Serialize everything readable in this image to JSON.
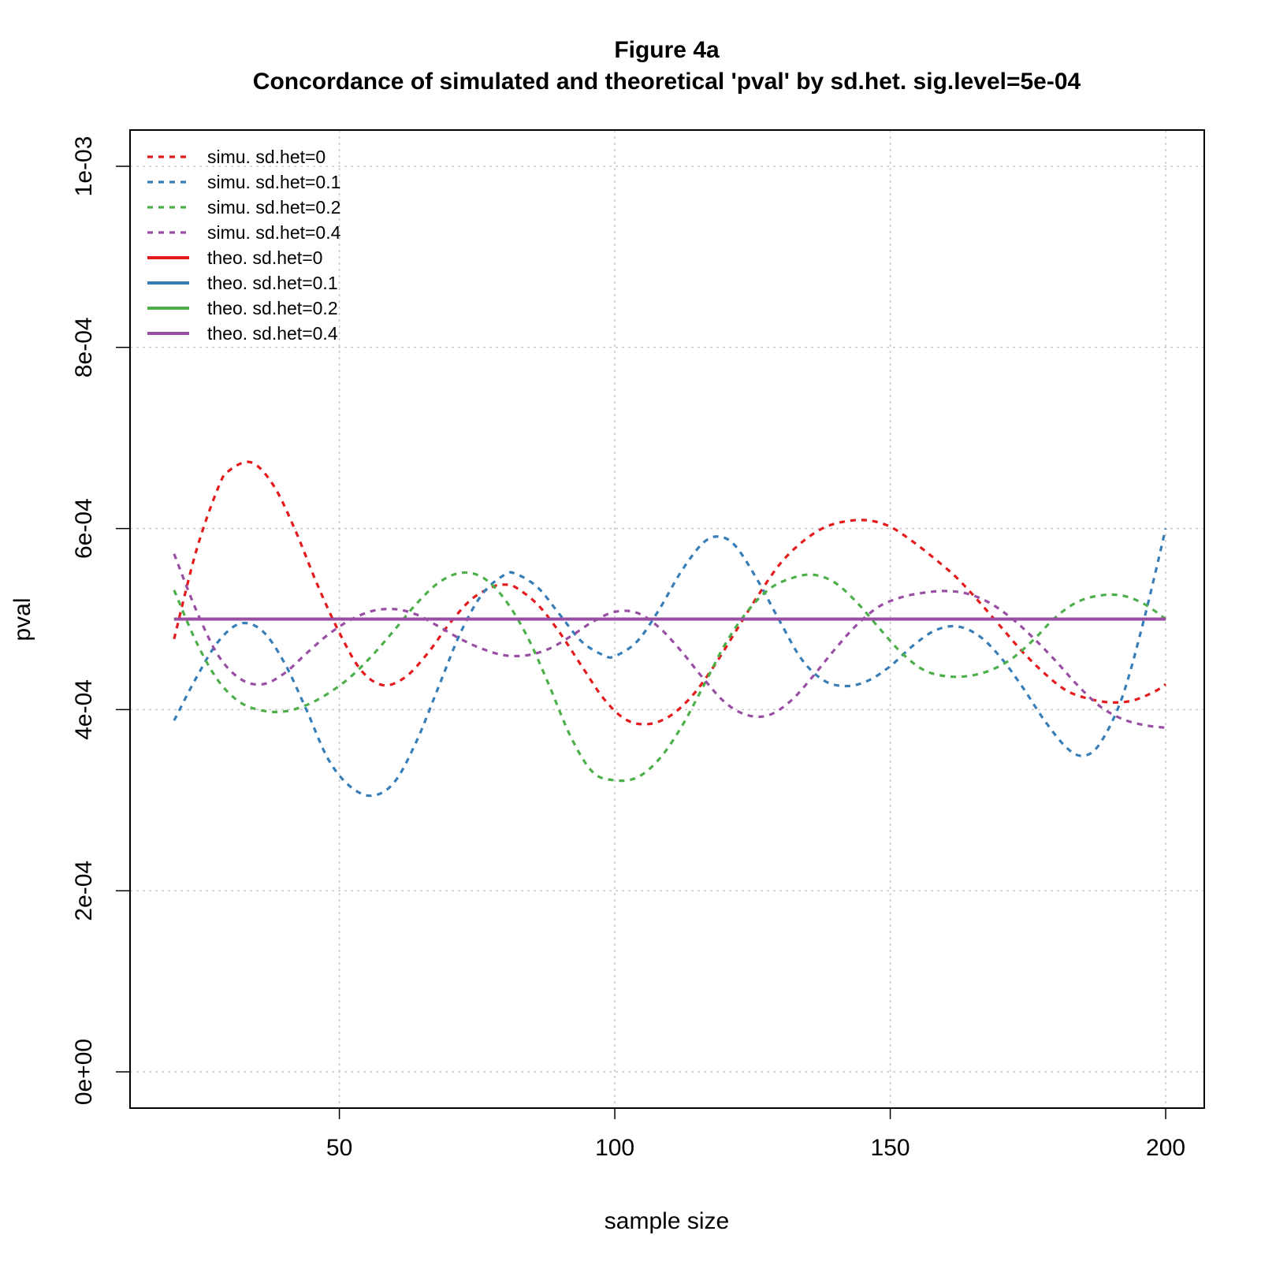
{
  "chart_data": {
    "type": "line",
    "title": "Figure 4a",
    "subtitle": "Concordance of simulated and theoretical 'pval' by sd.het. sig.level=5e-04",
    "xlabel": "sample size",
    "ylabel": "pval",
    "xlim": [
      12,
      207
    ],
    "ylim": [
      -4e-05,
      0.00104
    ],
    "x_ticks": [
      50,
      100,
      150,
      200
    ],
    "x_tick_labels": [
      "50",
      "100",
      "150",
      "200"
    ],
    "y_ticks": [
      0,
      0.0002,
      0.0004,
      0.0006,
      0.0008,
      0.001
    ],
    "y_tick_labels": [
      "0e+00",
      "2e-04",
      "4e-04",
      "6e-04",
      "8e-04",
      "1e-03"
    ],
    "grid": true,
    "legend_position": "top-left",
    "series": [
      {
        "name": "simu. sd.het=0",
        "color": "#e41a1c",
        "style": "dashed",
        "x": [
          20,
          24,
          28,
          30,
          34,
          38,
          42,
          46,
          50,
          54,
          58,
          62,
          66,
          70,
          74,
          78,
          80,
          82,
          86,
          90,
          94,
          98,
          102,
          106,
          110,
          114,
          118,
          122,
          126,
          130,
          134,
          138,
          142,
          146,
          150,
          154,
          158,
          162,
          166,
          170,
          174,
          178,
          182,
          186,
          190,
          194,
          198,
          200
        ],
        "y": [
          0.000478,
          0.000575,
          0.000645,
          0.000664,
          0.000673,
          0.000648,
          0.000598,
          0.000538,
          0.000485,
          0.000443,
          0.000427,
          0.000436,
          0.000462,
          0.000495,
          0.000522,
          0.000536,
          0.000538,
          0.000535,
          0.000516,
          0.000485,
          0.000448,
          0.000412,
          0.000389,
          0.000384,
          0.000393,
          0.000415,
          0.000448,
          0.000487,
          0.000526,
          0.000561,
          0.000585,
          0.000601,
          0.000608,
          0.000609,
          0.000602,
          0.000586,
          0.000567,
          0.000546,
          0.00052,
          0.000492,
          0.000464,
          0.00044,
          0.000421,
          0.000412,
          0.000408,
          0.00041,
          0.00042,
          0.000428
        ]
      },
      {
        "name": "simu. sd.het=0.1",
        "color": "#377eb8",
        "style": "dashed",
        "x": [
          20,
          24,
          28,
          32,
          36,
          40,
          44,
          48,
          52,
          56,
          60,
          64,
          68,
          72,
          76,
          80,
          82,
          86,
          90,
          94,
          98,
          100,
          104,
          108,
          112,
          116,
          119,
          122,
          126,
          130,
          134,
          138,
          142,
          146,
          150,
          154,
          158,
          162,
          166,
          170,
          174,
          178,
          182,
          185,
          188,
          192,
          196,
          200
        ],
        "y": [
          0.000388,
          0.000435,
          0.000475,
          0.000495,
          0.000487,
          0.000452,
          0.0004,
          0.000345,
          0.000315,
          0.000305,
          0.00032,
          0.000365,
          0.000425,
          0.000485,
          0.000528,
          0.000549,
          0.00055,
          0.000535,
          0.000505,
          0.000475,
          0.00046,
          0.000459,
          0.000475,
          0.00051,
          0.000552,
          0.000584,
          0.000591,
          0.00058,
          0.000542,
          0.000497,
          0.000455,
          0.000432,
          0.000426,
          0.000432,
          0.000448,
          0.00047,
          0.000487,
          0.000492,
          0.000482,
          0.000458,
          0.000425,
          0.000388,
          0.000358,
          0.000349,
          0.000362,
          0.000412,
          0.000498,
          0.0006
        ]
      },
      {
        "name": "simu. sd.het=0.2",
        "color": "#4daf4a",
        "style": "dashed",
        "x": [
          20,
          24,
          28,
          32,
          36,
          40,
          44,
          48,
          52,
          56,
          60,
          64,
          68,
          72,
          76,
          80,
          84,
          88,
          92,
          96,
          100,
          104,
          108,
          112,
          116,
          120,
          124,
          128,
          132,
          136,
          140,
          144,
          148,
          152,
          156,
          160,
          164,
          168,
          172,
          176,
          180,
          184,
          188,
          192,
          196,
          200
        ],
        "y": [
          0.000532,
          0.000475,
          0.000432,
          0.000408,
          0.000399,
          0.000398,
          0.000405,
          0.000418,
          0.000436,
          0.00046,
          0.000488,
          0.000517,
          0.00054,
          0.000551,
          0.000546,
          0.000522,
          0.000482,
          0.000428,
          0.00037,
          0.000331,
          0.000322,
          0.000325,
          0.000345,
          0.00038,
          0.000425,
          0.000472,
          0.000508,
          0.000533,
          0.000545,
          0.000549,
          0.00054,
          0.000518,
          0.00049,
          0.000463,
          0.000444,
          0.000437,
          0.000437,
          0.000443,
          0.000456,
          0.000477,
          0.000502,
          0.000519,
          0.000526,
          0.000526,
          0.000517,
          0.0005
        ]
      },
      {
        "name": "simu. sd.het=0.4",
        "color": "#984ea3",
        "style": "dashed",
        "x": [
          20,
          24,
          28,
          32,
          36,
          40,
          44,
          48,
          52,
          56,
          60,
          64,
          68,
          72,
          76,
          80,
          84,
          88,
          92,
          96,
          100,
          104,
          108,
          112,
          116,
          120,
          124,
          128,
          132,
          136,
          140,
          144,
          148,
          152,
          156,
          160,
          164,
          168,
          172,
          176,
          180,
          184,
          188,
          192,
          196,
          200
        ],
        "y": [
          0.000572,
          0.00051,
          0.00046,
          0.000434,
          0.000428,
          0.00044,
          0.000462,
          0.000483,
          0.000499,
          0.000509,
          0.000511,
          0.000505,
          0.000492,
          0.000478,
          0.000467,
          0.00046,
          0.00046,
          0.000467,
          0.000481,
          0.000497,
          0.000508,
          0.000507,
          0.000491,
          0.000465,
          0.000435,
          0.000408,
          0.000394,
          0.000394,
          0.00041,
          0.000437,
          0.000467,
          0.000494,
          0.000514,
          0.000524,
          0.000529,
          0.000531,
          0.000528,
          0.000518,
          0.000501,
          0.000479,
          0.000454,
          0.000427,
          0.000404,
          0.00039,
          0.000383,
          0.00038
        ]
      },
      {
        "name": "theo. sd.het=0",
        "color": "#e41a1c",
        "style": "solid",
        "x": [
          20,
          200
        ],
        "y": [
          0.0005,
          0.0005
        ]
      },
      {
        "name": "theo. sd.het=0.1",
        "color": "#377eb8",
        "style": "solid",
        "x": [
          20,
          200
        ],
        "y": [
          0.0005,
          0.0005
        ]
      },
      {
        "name": "theo. sd.het=0.2",
        "color": "#4daf4a",
        "style": "solid",
        "x": [
          20,
          200
        ],
        "y": [
          0.0005,
          0.0005
        ]
      },
      {
        "name": "theo. sd.het=0.4",
        "color": "#984ea3",
        "style": "solid",
        "x": [
          20,
          200
        ],
        "y": [
          0.0005,
          0.0005
        ]
      }
    ]
  }
}
